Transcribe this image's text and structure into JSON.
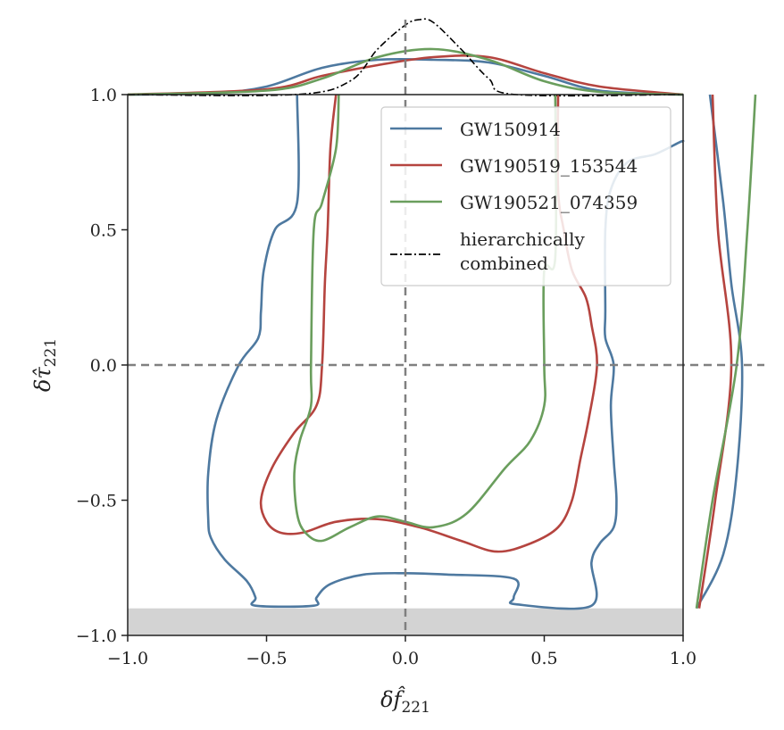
{
  "chart_data": {
    "type": "contour",
    "xlabel": "δf̂",
    "xlabel_sub": "221",
    "ylabel": "δτ̂",
    "ylabel_sub": "221",
    "xlim": [
      -1.0,
      1.0
    ],
    "ylim": [
      -1.0,
      1.0
    ],
    "x_ticks": [
      -1.0,
      -0.5,
      0.0,
      0.5,
      1.0
    ],
    "x_tick_labels": [
      "−1.0",
      "−0.5",
      "0.0",
      "0.5",
      "1.0"
    ],
    "y_ticks": [
      -1.0,
      -0.5,
      0.0,
      0.5,
      1.0
    ],
    "y_tick_labels": [
      "−1.0",
      "−0.5",
      "0.0",
      "0.5",
      "1.0"
    ],
    "reference_lines": {
      "x": 0.0,
      "y": 0.0,
      "style": "dashed",
      "color": "#808080"
    },
    "shaded_region": {
      "y_range": [
        -1.0,
        -0.9
      ],
      "color": "#d3d3d3"
    },
    "legend_position": "upper-right",
    "series": [
      {
        "name": "GW150914",
        "color": "#4e79a0",
        "contour": [
          [
            -0.39,
            1.0
          ],
          [
            -0.39,
            0.6
          ],
          [
            -0.47,
            0.5
          ],
          [
            -0.51,
            0.35
          ],
          [
            -0.52,
            0.2
          ],
          [
            -0.53,
            0.1
          ],
          [
            -0.6,
            0.0
          ],
          [
            -0.68,
            -0.2
          ],
          [
            -0.71,
            -0.4
          ],
          [
            -0.71,
            -0.57
          ],
          [
            -0.7,
            -0.64
          ],
          [
            -0.65,
            -0.72
          ],
          [
            -0.57,
            -0.8
          ],
          [
            -0.54,
            -0.86
          ],
          [
            -0.54,
            -0.89
          ],
          [
            -0.33,
            -0.89
          ],
          [
            -0.32,
            -0.86
          ],
          [
            -0.27,
            -0.81
          ],
          [
            -0.15,
            -0.775
          ],
          [
            0.0,
            -0.77
          ],
          [
            0.15,
            -0.775
          ],
          [
            0.39,
            -0.79
          ],
          [
            0.39,
            -0.86
          ],
          [
            0.4,
            -0.885
          ],
          [
            0.67,
            -0.89
          ],
          [
            0.67,
            -0.73
          ],
          [
            0.7,
            -0.66
          ],
          [
            0.75,
            -0.6
          ],
          [
            0.76,
            -0.5
          ],
          [
            0.75,
            -0.35
          ],
          [
            0.74,
            -0.15
          ],
          [
            0.75,
            0.0
          ],
          [
            0.72,
            0.1
          ],
          [
            0.72,
            0.2
          ],
          [
            0.72,
            0.5
          ],
          [
            0.74,
            0.65
          ],
          [
            0.8,
            0.75
          ],
          [
            0.9,
            0.78
          ],
          [
            0.99,
            0.825
          ],
          [
            1.0,
            0.825
          ]
        ],
        "x_marginal": [
          [
            -1.0,
            0.0
          ],
          [
            -0.7,
            0.005
          ],
          [
            -0.5,
            0.03
          ],
          [
            -0.3,
            0.1
          ],
          [
            -0.1,
            0.13
          ],
          [
            0.1,
            0.13
          ],
          [
            0.3,
            0.12
          ],
          [
            0.5,
            0.07
          ],
          [
            0.7,
            0.015
          ],
          [
            1.0,
            0.0
          ]
        ],
        "y_marginal": [
          [
            -0.9,
            0.05
          ],
          [
            -0.7,
            0.15
          ],
          [
            -0.4,
            0.2
          ],
          [
            0.0,
            0.22
          ],
          [
            0.3,
            0.18
          ],
          [
            0.6,
            0.15
          ],
          [
            1.0,
            0.1
          ]
        ]
      },
      {
        "name": "GW190519_153544",
        "color": "#b5443f",
        "contour": [
          [
            -0.25,
            1.0
          ],
          [
            -0.27,
            0.8
          ],
          [
            -0.28,
            0.5
          ],
          [
            -0.29,
            0.3
          ],
          [
            -0.3,
            0.0
          ],
          [
            -0.32,
            -0.15
          ],
          [
            -0.4,
            -0.25
          ],
          [
            -0.48,
            -0.38
          ],
          [
            -0.52,
            -0.5
          ],
          [
            -0.5,
            -0.58
          ],
          [
            -0.45,
            -0.62
          ],
          [
            -0.37,
            -0.62
          ],
          [
            -0.25,
            -0.58
          ],
          [
            -0.1,
            -0.57
          ],
          [
            0.05,
            -0.6
          ],
          [
            0.2,
            -0.65
          ],
          [
            0.33,
            -0.69
          ],
          [
            0.45,
            -0.66
          ],
          [
            0.55,
            -0.6
          ],
          [
            0.6,
            -0.5
          ],
          [
            0.63,
            -0.35
          ],
          [
            0.66,
            -0.2
          ],
          [
            0.69,
            0.0
          ],
          [
            0.67,
            0.15
          ],
          [
            0.65,
            0.25
          ],
          [
            0.6,
            0.35
          ],
          [
            0.57,
            0.5
          ],
          [
            0.55,
            0.65
          ],
          [
            0.55,
            1.0
          ]
        ],
        "x_marginal": [
          [
            -1.0,
            0.0
          ],
          [
            -0.5,
            0.02
          ],
          [
            -0.3,
            0.07
          ],
          [
            -0.1,
            0.11
          ],
          [
            0.1,
            0.14
          ],
          [
            0.3,
            0.14
          ],
          [
            0.5,
            0.08
          ],
          [
            0.7,
            0.03
          ],
          [
            1.0,
            0.0
          ]
        ],
        "y_marginal": [
          [
            -0.9,
            0.06
          ],
          [
            -0.5,
            0.12
          ],
          [
            0.0,
            0.18
          ],
          [
            0.5,
            0.13
          ],
          [
            1.0,
            0.11
          ]
        ]
      },
      {
        "name": "GW190521_074359",
        "color": "#6a9e5d",
        "contour": [
          [
            -0.24,
            1.0
          ],
          [
            -0.25,
            0.8
          ],
          [
            -0.3,
            0.6
          ],
          [
            -0.33,
            0.5
          ],
          [
            -0.34,
            0.0
          ],
          [
            -0.34,
            -0.15
          ],
          [
            -0.38,
            -0.28
          ],
          [
            -0.4,
            -0.4
          ],
          [
            -0.39,
            -0.55
          ],
          [
            -0.36,
            -0.62
          ],
          [
            -0.3,
            -0.65
          ],
          [
            -0.2,
            -0.6
          ],
          [
            -0.1,
            -0.56
          ],
          [
            0.0,
            -0.58
          ],
          [
            0.1,
            -0.6
          ],
          [
            0.22,
            -0.55
          ],
          [
            0.36,
            -0.38
          ],
          [
            0.45,
            -0.28
          ],
          [
            0.5,
            -0.15
          ],
          [
            0.5,
            0.0
          ],
          [
            0.5,
            0.35
          ],
          [
            0.54,
            0.4
          ],
          [
            0.54,
            1.0
          ]
        ],
        "x_marginal": [
          [
            -1.0,
            0.0
          ],
          [
            -0.5,
            0.015
          ],
          [
            -0.3,
            0.06
          ],
          [
            -0.1,
            0.14
          ],
          [
            0.1,
            0.17
          ],
          [
            0.3,
            0.13
          ],
          [
            0.5,
            0.05
          ],
          [
            0.7,
            0.01
          ],
          [
            1.0,
            0.0
          ]
        ],
        "y_marginal": [
          [
            -0.9,
            0.05
          ],
          [
            -0.5,
            0.11
          ],
          [
            0.0,
            0.2
          ],
          [
            0.5,
            0.24
          ],
          [
            1.0,
            0.27
          ]
        ]
      },
      {
        "name": "hierarchically combined",
        "legend_lines": [
          "hierarchically",
          "combined"
        ],
        "color": "#000000",
        "linestyle": "dashdot",
        "x_marginal": [
          [
            -1.0,
            0.0
          ],
          [
            -0.4,
            0.0
          ],
          [
            -0.2,
            0.05
          ],
          [
            -0.1,
            0.17
          ],
          [
            0.0,
            0.26
          ],
          [
            0.05,
            0.28
          ],
          [
            0.1,
            0.27
          ],
          [
            0.2,
            0.17
          ],
          [
            0.3,
            0.06
          ],
          [
            0.4,
            0.0
          ],
          [
            1.0,
            0.0
          ]
        ]
      }
    ]
  }
}
